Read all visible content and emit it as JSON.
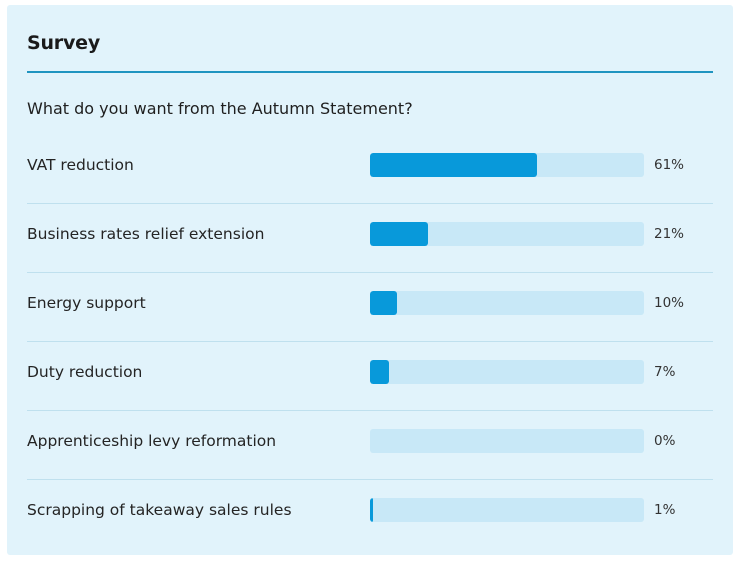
{
  "survey": {
    "title": "Survey",
    "question": "What do you want from the Autumn Statement?",
    "accent_color": "#1f94c0",
    "bar_fill_color": "#0899da",
    "bar_track_color": "#c8e8f7",
    "card_background": "#e1f3fb",
    "options": [
      {
        "label": "VAT reduction",
        "percent": 61,
        "percent_label": "61%"
      },
      {
        "label": "Business rates relief extension",
        "percent": 21,
        "percent_label": "21%"
      },
      {
        "label": "Energy support",
        "percent": 10,
        "percent_label": "10%"
      },
      {
        "label": "Duty reduction",
        "percent": 7,
        "percent_label": "7%"
      },
      {
        "label": "Apprenticeship levy reformation",
        "percent": 0,
        "percent_label": "0%"
      },
      {
        "label": "Scrapping of takeaway sales rules",
        "percent": 1,
        "percent_label": "1%"
      }
    ]
  }
}
